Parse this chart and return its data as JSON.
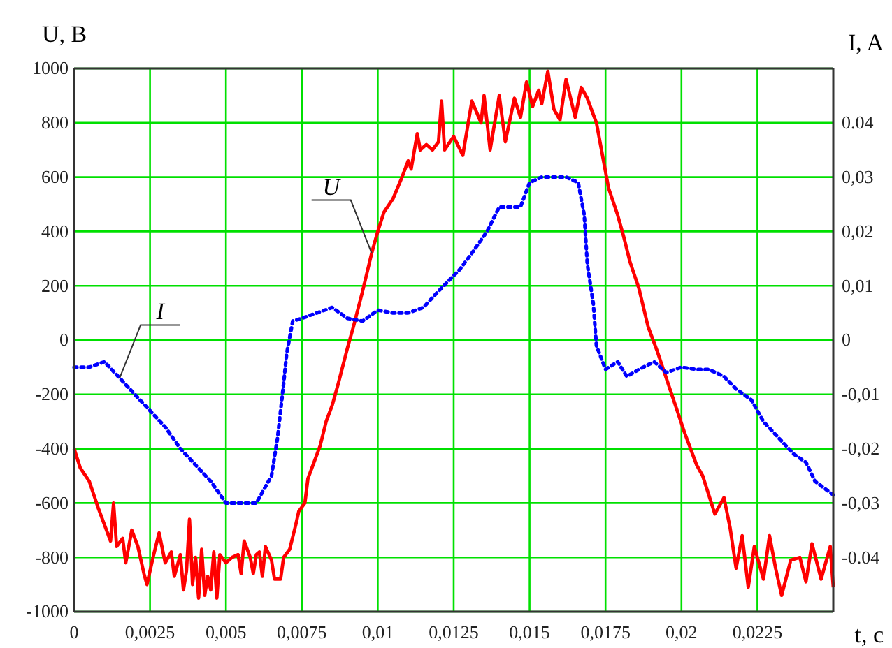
{
  "chart_data": {
    "type": "line",
    "xlabel": "t, c",
    "ylabel": "U, B",
    "y2label": "I, A",
    "xlim": [
      0,
      0.025
    ],
    "xticks": [
      0,
      {
        "value": 0.0025,
        "label": "0,0025"
      },
      {
        "value": 0.005,
        "label": "0,005"
      },
      {
        "value": 0.0075,
        "label": "0,0075"
      },
      {
        "value": 0.01,
        "label": "0,01"
      },
      {
        "value": 0.0125,
        "label": "0,0125"
      },
      {
        "value": 0.015,
        "label": "0,015"
      },
      {
        "value": 0.0175,
        "label": "0,0175"
      },
      {
        "value": 0.02,
        "label": "0,02"
      },
      {
        "value": 0.0225,
        "label": "0,0225"
      }
    ],
    "ylim": [
      -1000,
      1000
    ],
    "yticks": [
      -1000,
      -800,
      -600,
      -400,
      -200,
      0,
      200,
      400,
      600,
      800,
      1000
    ],
    "y2lim": [
      -0.05,
      0.05
    ],
    "y2ticks": [
      -0.04,
      {
        "value": -0.03,
        "label": "-0,03"
      },
      {
        "value": -0.02,
        "label": "-0,02"
      },
      {
        "value": -0.01,
        "label": "-0,01"
      },
      0,
      {
        "value": 0.01,
        "label": "0,01"
      },
      {
        "value": 0.02,
        "label": "0,02"
      },
      {
        "value": 0.03,
        "label": "0,03"
      },
      0.04
    ],
    "grid": true,
    "marker": "none",
    "series": [
      {
        "name": "U",
        "color": "#ff0000",
        "line_style": "solid",
        "x": [
          0,
          0.0002,
          0.0005,
          0.0008,
          0.001,
          0.0012,
          0.0013,
          0.0014,
          0.0016,
          0.0017,
          0.0019,
          0.0021,
          0.0023,
          0.0024,
          0.0026,
          0.0028,
          0.003,
          0.0032,
          0.0033,
          0.0035,
          0.0036,
          0.0037,
          0.0038,
          0.0039,
          0.004,
          0.0041,
          0.0042,
          0.0043,
          0.0044,
          0.0045,
          0.0046,
          0.0047,
          0.0048,
          0.005,
          0.0052,
          0.0054,
          0.0055,
          0.0056,
          0.0058,
          0.0059,
          0.006,
          0.0061,
          0.0062,
          0.0063,
          0.0065,
          0.0066,
          0.0068,
          0.0069,
          0.0071,
          0.0073,
          0.0074,
          0.0076,
          0.0077,
          0.0079,
          0.0081,
          0.0083,
          0.0085,
          0.0087,
          0.009,
          0.0092,
          0.0095,
          0.0098,
          0.01,
          0.0102,
          0.0105,
          0.0108,
          0.011,
          0.0111,
          0.0113,
          0.0114,
          0.0116,
          0.0118,
          0.012,
          0.0121,
          0.0122,
          0.0125,
          0.0128,
          0.0131,
          0.0134,
          0.0135,
          0.0137,
          0.014,
          0.0142,
          0.0145,
          0.0147,
          0.0149,
          0.0151,
          0.0153,
          0.0154,
          0.0156,
          0.0158,
          0.016,
          0.0162,
          0.0165,
          0.0167,
          0.0169,
          0.0172,
          0.0174,
          0.0176,
          0.0179,
          0.0181,
          0.0183,
          0.0186,
          0.0189,
          0.0192,
          0.0195,
          0.0198,
          0.0201,
          0.0203,
          0.0205,
          0.0207,
          0.0209,
          0.0211,
          0.0214,
          0.0216,
          0.0218,
          0.022,
          0.0222,
          0.0224,
          0.0227,
          0.0229,
          0.0231,
          0.0233,
          0.0236,
          0.0239,
          0.0241,
          0.0243,
          0.0246,
          0.0249,
          0.025
        ],
        "values": [
          -400,
          -470,
          -520,
          -620,
          -680,
          -740,
          -600,
          -760,
          -730,
          -820,
          -700,
          -760,
          -860,
          -900,
          -800,
          -710,
          -820,
          -780,
          -870,
          -790,
          -920,
          -850,
          -660,
          -900,
          -800,
          -950,
          -770,
          -940,
          -870,
          -920,
          -780,
          -950,
          -790,
          -820,
          -800,
          -790,
          -860,
          -740,
          -800,
          -860,
          -790,
          -780,
          -870,
          -760,
          -810,
          -880,
          -880,
          -800,
          -770,
          -680,
          -630,
          -600,
          -510,
          -450,
          -390,
          -300,
          -240,
          -160,
          -30,
          50,
          180,
          320,
          400,
          470,
          520,
          600,
          660,
          630,
          760,
          700,
          720,
          700,
          730,
          880,
          700,
          750,
          680,
          880,
          800,
          900,
          700,
          900,
          730,
          890,
          820,
          950,
          860,
          920,
          870,
          990,
          850,
          810,
          960,
          820,
          930,
          890,
          800,
          680,
          560,
          460,
          380,
          290,
          190,
          50,
          -40,
          -140,
          -240,
          -340,
          -400,
          -460,
          -500,
          -570,
          -640,
          -580,
          -690,
          -840,
          -720,
          -910,
          -760,
          -880,
          -720,
          -840,
          -940,
          -810,
          -800,
          -890,
          -750,
          -880,
          -760,
          -910
        ]
      },
      {
        "name": "I",
        "color": "#0000ff",
        "line_style": "dotted",
        "axis": "y2",
        "x": [
          0,
          0.0005,
          0.001,
          0.0015,
          0.002,
          0.0025,
          0.003,
          0.0035,
          0.004,
          0.0045,
          0.005,
          0.0055,
          0.006,
          0.0065,
          0.0067,
          0.0069,
          0.007,
          0.0072,
          0.0075,
          0.008,
          0.0085,
          0.009,
          0.0095,
          0.01,
          0.0105,
          0.011,
          0.0115,
          0.012,
          0.0127,
          0.0131,
          0.0136,
          0.014,
          0.0147,
          0.015,
          0.0154,
          0.0158,
          0.0162,
          0.0166,
          0.0168,
          0.0169,
          0.0171,
          0.0172,
          0.0175,
          0.0179,
          0.0182,
          0.0186,
          0.0191,
          0.0195,
          0.02,
          0.0205,
          0.0209,
          0.0214,
          0.0218,
          0.0223,
          0.0227,
          0.0232,
          0.0237,
          0.0241,
          0.0244,
          0.025
        ],
        "values": [
          -0.005,
          -0.005,
          -0.004,
          -0.007,
          -0.01,
          -0.013,
          -0.016,
          -0.02,
          -0.023,
          -0.026,
          -0.03,
          -0.03,
          -0.03,
          -0.025,
          -0.018,
          -0.008,
          -0.0025,
          0.0035,
          0.004,
          0.005,
          0.006,
          0.004,
          0.0035,
          0.0055,
          0.005,
          0.005,
          0.006,
          0.009,
          0.013,
          0.016,
          0.02,
          0.0245,
          0.0245,
          0.029,
          0.03,
          0.03,
          0.03,
          0.029,
          0.023,
          0.014,
          0.0066,
          -0.001,
          -0.0054,
          -0.004,
          -0.0067,
          -0.0054,
          -0.004,
          -0.006,
          -0.005,
          -0.0054,
          -0.0054,
          -0.0067,
          -0.009,
          -0.011,
          -0.015,
          -0.018,
          -0.021,
          -0.0225,
          -0.026,
          -0.0285
        ]
      }
    ]
  }
}
